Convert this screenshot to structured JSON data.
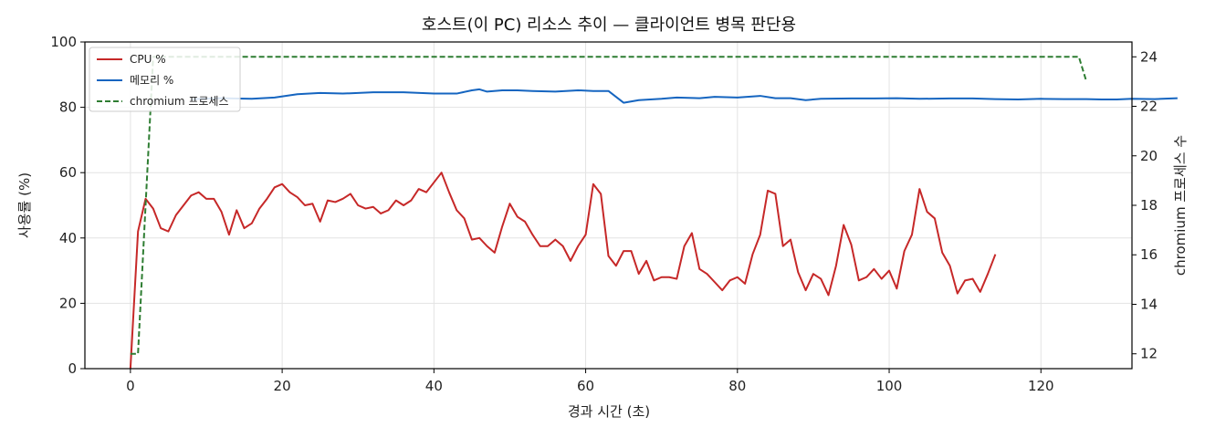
{
  "chart_data": {
    "type": "line",
    "title": "호스트(이 PC) 리소스 추이 — 클라이언트 병목 판단용",
    "xlabel": "경과 시간 (초)",
    "ylabel": "사용률 (%)",
    "y2label": "chromium 프로세스 수",
    "xlim": [
      -6,
      132
    ],
    "ylim": [
      0,
      100
    ],
    "y2lim": [
      11.4,
      24.6
    ],
    "xticks": [
      0,
      20,
      40,
      60,
      80,
      100,
      120
    ],
    "yticks": [
      0,
      20,
      40,
      60,
      80,
      100
    ],
    "y2ticks": [
      12,
      14,
      16,
      18,
      20,
      22,
      24
    ],
    "grid": true,
    "legend_position": "top-left",
    "series": [
      {
        "name": "CPU %",
        "axis": "left",
        "color": "#c62828",
        "style": "solid",
        "points": [
          [
            0,
            0
          ],
          [
            1,
            42
          ],
          [
            2,
            52
          ],
          [
            3,
            49
          ],
          [
            4,
            43
          ],
          [
            5,
            42
          ],
          [
            6,
            47
          ],
          [
            7,
            50
          ],
          [
            8,
            53
          ],
          [
            9,
            54
          ],
          [
            10,
            52
          ],
          [
            11,
            52
          ],
          [
            12,
            48
          ],
          [
            13,
            41
          ],
          [
            14,
            48.5
          ],
          [
            15,
            43
          ],
          [
            16,
            44.5
          ],
          [
            17,
            49
          ],
          [
            18,
            52
          ],
          [
            19,
            55.5
          ],
          [
            20,
            56.5
          ],
          [
            21,
            54
          ],
          [
            22,
            52.5
          ],
          [
            23,
            50
          ],
          [
            24,
            50.5
          ],
          [
            25,
            45
          ],
          [
            26,
            51.5
          ],
          [
            27,
            51
          ],
          [
            28,
            52
          ],
          [
            29,
            53.5
          ],
          [
            30,
            50
          ],
          [
            31,
            49
          ],
          [
            32,
            49.5
          ],
          [
            33,
            47.5
          ],
          [
            34,
            48.5
          ],
          [
            35,
            51.5
          ],
          [
            36,
            50
          ],
          [
            37,
            51.5
          ],
          [
            38,
            55
          ],
          [
            39,
            54
          ],
          [
            40,
            57
          ],
          [
            41,
            60
          ],
          [
            42,
            54
          ],
          [
            43,
            48.5
          ],
          [
            44,
            46
          ],
          [
            45,
            39.5
          ],
          [
            46,
            40
          ],
          [
            47,
            37.5
          ],
          [
            48,
            35.5
          ],
          [
            49,
            43.5
          ],
          [
            50,
            50.5
          ],
          [
            51,
            46.5
          ],
          [
            52,
            45
          ],
          [
            53,
            41
          ],
          [
            54,
            37.5
          ],
          [
            55,
            37.5
          ],
          [
            56,
            39.5
          ],
          [
            57,
            37.5
          ],
          [
            58,
            33
          ],
          [
            59,
            37.5
          ],
          [
            60,
            41
          ],
          [
            61,
            56.5
          ],
          [
            62,
            53.5
          ],
          [
            63,
            34.5
          ],
          [
            64,
            31.5
          ],
          [
            65,
            36
          ],
          [
            66,
            36
          ],
          [
            67,
            29
          ],
          [
            68,
            33
          ],
          [
            69,
            27
          ],
          [
            70,
            28
          ],
          [
            71,
            28
          ],
          [
            72,
            27.5
          ],
          [
            73,
            37.5
          ],
          [
            74,
            41.5
          ],
          [
            75,
            30.5
          ],
          [
            76,
            29
          ],
          [
            77,
            26.5
          ],
          [
            78,
            24
          ],
          [
            79,
            27
          ],
          [
            80,
            28
          ],
          [
            81,
            26
          ],
          [
            82,
            35
          ],
          [
            83,
            41
          ],
          [
            84,
            54.5
          ],
          [
            85,
            53.5
          ],
          [
            86,
            37.5
          ],
          [
            87,
            39.5
          ],
          [
            88,
            29.5
          ],
          [
            89,
            24
          ],
          [
            90,
            29
          ],
          [
            91,
            27.5
          ],
          [
            92,
            22.5
          ],
          [
            93,
            31.5
          ],
          [
            94,
            44
          ],
          [
            95,
            38
          ],
          [
            96,
            27
          ],
          [
            97,
            28
          ],
          [
            98,
            30.5
          ],
          [
            99,
            27.5
          ],
          [
            100,
            30
          ],
          [
            101,
            24.5
          ],
          [
            102,
            36
          ],
          [
            103,
            41
          ],
          [
            104,
            55
          ],
          [
            105,
            48
          ],
          [
            106,
            46
          ],
          [
            107,
            35.5
          ],
          [
            108,
            31.5
          ],
          [
            109,
            23
          ],
          [
            110,
            27
          ],
          [
            111,
            27.5
          ],
          [
            112,
            23.5
          ],
          [
            113,
            29
          ],
          [
            114,
            35
          ]
        ]
      },
      {
        "name": "메모리 %",
        "axis": "left",
        "color": "#1565c0",
        "style": "solid",
        "points": [
          [
            8,
            82.5
          ],
          [
            12,
            82.8
          ],
          [
            16,
            82.6
          ],
          [
            19,
            83
          ],
          [
            22,
            84
          ],
          [
            25,
            84.4
          ],
          [
            28,
            84.2
          ],
          [
            32,
            84.6
          ],
          [
            36,
            84.6
          ],
          [
            40,
            84.2
          ],
          [
            43,
            84.2
          ],
          [
            45,
            85.2
          ],
          [
            46,
            85.5
          ],
          [
            47,
            84.8
          ],
          [
            49,
            85.2
          ],
          [
            51,
            85.2
          ],
          [
            53,
            85
          ],
          [
            56,
            84.8
          ],
          [
            59,
            85.2
          ],
          [
            61,
            85
          ],
          [
            63,
            85
          ],
          [
            65,
            81.4
          ],
          [
            67,
            82.2
          ],
          [
            70,
            82.6
          ],
          [
            72,
            83
          ],
          [
            75,
            82.8
          ],
          [
            77,
            83.2
          ],
          [
            80,
            83
          ],
          [
            83,
            83.5
          ],
          [
            85,
            82.8
          ],
          [
            87,
            82.8
          ],
          [
            89,
            82.2
          ],
          [
            91,
            82.6
          ],
          [
            95,
            82.7
          ],
          [
            98,
            82.7
          ],
          [
            101,
            82.8
          ],
          [
            104,
            82.6
          ],
          [
            108,
            82.7
          ],
          [
            111,
            82.7
          ],
          [
            114,
            82.5
          ],
          [
            117,
            82.4
          ],
          [
            120,
            82.6
          ],
          [
            123,
            82.5
          ],
          [
            126,
            82.5
          ],
          [
            128,
            82.4
          ],
          [
            130,
            82.4
          ],
          [
            132,
            82.6
          ],
          [
            135,
            82.5
          ],
          [
            138,
            82.8
          ]
        ]
      },
      {
        "name": "chromium 프로세스",
        "axis": "right",
        "color": "#2e7d32",
        "style": "dashed",
        "points": [
          [
            0,
            12
          ],
          [
            1,
            12
          ],
          [
            2,
            18
          ],
          [
            3,
            24
          ],
          [
            4,
            24
          ],
          [
            125,
            24
          ],
          [
            126,
            23
          ]
        ]
      }
    ]
  }
}
